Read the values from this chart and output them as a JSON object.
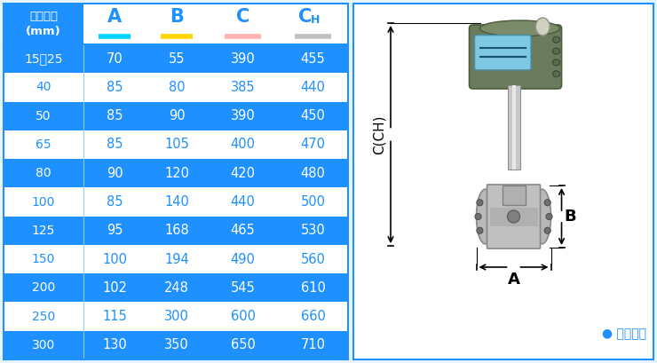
{
  "title_text": "仪表口径\n(mm)",
  "col_headers": [
    "A",
    "B",
    "C",
    "CH"
  ],
  "col_underline_colors": [
    "#00D4FF",
    "#FFD700",
    "#FFB0B0",
    "#C0C0C0"
  ],
  "rows": [
    [
      "15～25",
      "70",
      "55",
      "390",
      "455"
    ],
    [
      "40",
      "85",
      "80",
      "385",
      "440"
    ],
    [
      "50",
      "85",
      "90",
      "390",
      "450"
    ],
    [
      "65",
      "85",
      "105",
      "400",
      "470"
    ],
    [
      "80",
      "90",
      "120",
      "420",
      "480"
    ],
    [
      "100",
      "85",
      "140",
      "440",
      "500"
    ],
    [
      "125",
      "95",
      "168",
      "465",
      "530"
    ],
    [
      "150",
      "100",
      "194",
      "490",
      "560"
    ],
    [
      "200",
      "102",
      "248",
      "545",
      "610"
    ],
    [
      "250",
      "115",
      "300",
      "600",
      "660"
    ],
    [
      "300",
      "130",
      "350",
      "650",
      "710"
    ]
  ],
  "blue_rows": [
    0,
    2,
    4,
    6,
    8,
    10
  ],
  "blue_color": "#1E90FF",
  "white_color": "#FFFFFF",
  "bg_color": "#E8F4FD",
  "note_text": "常规仪表",
  "note_color": "#1E90FF",
  "label_C": "C(CH)",
  "label_A": "A",
  "label_B": "B"
}
